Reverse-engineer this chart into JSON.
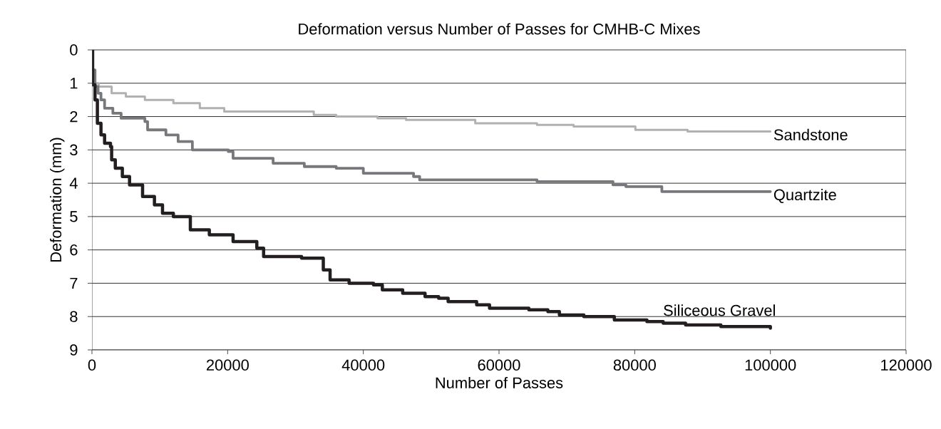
{
  "chart_data": {
    "type": "step",
    "title": "Deformation versus Number of Passes for CMHB-C Mixes",
    "xlabel": "Number of Passes",
    "ylabel": "Deformation (mm)",
    "xlim": [
      0,
      120000
    ],
    "xticks": [
      0,
      20000,
      40000,
      60000,
      80000,
      100000,
      120000
    ],
    "ylim": [
      9,
      0
    ],
    "yticks": [
      0,
      1,
      2,
      3,
      4,
      5,
      6,
      7,
      8,
      9
    ],
    "grid": "y",
    "legend": false,
    "line_style": "solid",
    "marker": "none",
    "series": [
      {
        "name": "Sandstone",
        "color": "#b1b1b3",
        "x": [
          0,
          300,
          1000,
          2900,
          5000,
          7800,
          12000,
          15900,
          19500,
          32700,
          36000,
          42100,
          46300,
          56500,
          65600,
          71000,
          80100,
          87800,
          100000
        ],
        "values": [
          0.6,
          1.0,
          1.1,
          1.3,
          1.4,
          1.5,
          1.6,
          1.75,
          1.85,
          1.95,
          2.0,
          2.05,
          2.1,
          2.2,
          2.25,
          2.3,
          2.4,
          2.45,
          2.45
        ]
      },
      {
        "name": "Quartzite",
        "color": "#77787b",
        "x": [
          0,
          450,
          900,
          1330,
          1860,
          3080,
          4300,
          7800,
          8200,
          10900,
          12700,
          14800,
          20100,
          20800,
          26700,
          31300,
          36000,
          40000,
          47400,
          48300,
          65600,
          76800,
          78700,
          84000,
          100000
        ],
        "values": [
          0.6,
          1.1,
          1.3,
          1.5,
          1.75,
          1.9,
          2.05,
          2.15,
          2.4,
          2.55,
          2.75,
          3.0,
          3.05,
          3.25,
          3.4,
          3.5,
          3.55,
          3.7,
          3.8,
          3.9,
          3.95,
          4.05,
          4.1,
          4.25,
          4.25
        ]
      },
      {
        "name": "Siliceous Gravel",
        "color": "#231f20",
        "x": [
          0,
          100,
          450,
          800,
          1330,
          1860,
          2730,
          2900,
          3440,
          4480,
          5540,
          7460,
          9210,
          10400,
          12000,
          14500,
          17300,
          20800,
          24300,
          25300,
          30900,
          34100,
          35100,
          37900,
          41500,
          42800,
          45800,
          49100,
          51100,
          52500,
          56700,
          58600,
          64400,
          67200,
          68900,
          72500,
          77000,
          81800,
          84200,
          87500,
          92700,
          100000
        ],
        "values": [
          0,
          1.05,
          1.5,
          2.2,
          2.55,
          2.8,
          2.9,
          3.3,
          3.55,
          3.8,
          4.05,
          4.4,
          4.65,
          4.9,
          5.0,
          5.4,
          5.55,
          5.75,
          5.95,
          6.2,
          6.25,
          6.6,
          6.9,
          7.0,
          7.05,
          7.2,
          7.3,
          7.4,
          7.45,
          7.55,
          7.65,
          7.75,
          7.8,
          7.85,
          7.95,
          8.0,
          8.1,
          8.15,
          8.2,
          8.25,
          8.3,
          8.35
        ]
      }
    ]
  }
}
